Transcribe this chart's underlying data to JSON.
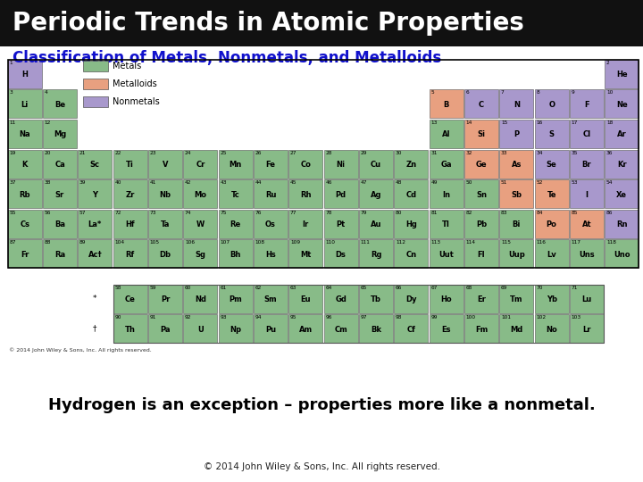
{
  "title": "Periodic Trends in Atomic Properties",
  "subtitle": "Classification of Metals, Nonmetals, and Metalloids",
  "bottom_text1": "Hydrogen is an exception – properties more like a nonmetal.",
  "bottom_text2": "© 2014 John Wiley & Sons, Inc. All rights reserved.",
  "copyright_in_table": "© 2014 John Wiley & Sons, Inc. All rights reserved.",
  "title_bg": "#111111",
  "title_color": "#ffffff",
  "subtitle_color": "#1111cc",
  "metals_color": "#88bb88",
  "metalloids_color": "#e8a080",
  "nonmetals_color": "#a898cc",
  "border_color": "#444444",
  "elements": [
    {
      "num": 1,
      "sym": "H",
      "row": 1,
      "col": 1,
      "type": "nonmetal"
    },
    {
      "num": 2,
      "sym": "He",
      "row": 1,
      "col": 18,
      "type": "nonmetal"
    },
    {
      "num": 3,
      "sym": "Li",
      "row": 2,
      "col": 1,
      "type": "metal"
    },
    {
      "num": 4,
      "sym": "Be",
      "row": 2,
      "col": 2,
      "type": "metal"
    },
    {
      "num": 5,
      "sym": "B",
      "row": 2,
      "col": 13,
      "type": "metalloid"
    },
    {
      "num": 6,
      "sym": "C",
      "row": 2,
      "col": 14,
      "type": "nonmetal"
    },
    {
      "num": 7,
      "sym": "N",
      "row": 2,
      "col": 15,
      "type": "nonmetal"
    },
    {
      "num": 8,
      "sym": "O",
      "row": 2,
      "col": 16,
      "type": "nonmetal"
    },
    {
      "num": 9,
      "sym": "F",
      "row": 2,
      "col": 17,
      "type": "nonmetal"
    },
    {
      "num": 10,
      "sym": "Ne",
      "row": 2,
      "col": 18,
      "type": "nonmetal"
    },
    {
      "num": 11,
      "sym": "Na",
      "row": 3,
      "col": 1,
      "type": "metal"
    },
    {
      "num": 12,
      "sym": "Mg",
      "row": 3,
      "col": 2,
      "type": "metal"
    },
    {
      "num": 13,
      "sym": "Al",
      "row": 3,
      "col": 13,
      "type": "metal"
    },
    {
      "num": 14,
      "sym": "Si",
      "row": 3,
      "col": 14,
      "type": "metalloid"
    },
    {
      "num": 15,
      "sym": "P",
      "row": 3,
      "col": 15,
      "type": "nonmetal"
    },
    {
      "num": 16,
      "sym": "S",
      "row": 3,
      "col": 16,
      "type": "nonmetal"
    },
    {
      "num": 17,
      "sym": "Cl",
      "row": 3,
      "col": 17,
      "type": "nonmetal"
    },
    {
      "num": 18,
      "sym": "Ar",
      "row": 3,
      "col": 18,
      "type": "nonmetal"
    },
    {
      "num": 19,
      "sym": "K",
      "row": 4,
      "col": 1,
      "type": "metal"
    },
    {
      "num": 20,
      "sym": "Ca",
      "row": 4,
      "col": 2,
      "type": "metal"
    },
    {
      "num": 21,
      "sym": "Sc",
      "row": 4,
      "col": 3,
      "type": "metal"
    },
    {
      "num": 22,
      "sym": "Ti",
      "row": 4,
      "col": 4,
      "type": "metal"
    },
    {
      "num": 23,
      "sym": "V",
      "row": 4,
      "col": 5,
      "type": "metal"
    },
    {
      "num": 24,
      "sym": "Cr",
      "row": 4,
      "col": 6,
      "type": "metal"
    },
    {
      "num": 25,
      "sym": "Mn",
      "row": 4,
      "col": 7,
      "type": "metal"
    },
    {
      "num": 26,
      "sym": "Fe",
      "row": 4,
      "col": 8,
      "type": "metal"
    },
    {
      "num": 27,
      "sym": "Co",
      "row": 4,
      "col": 9,
      "type": "metal"
    },
    {
      "num": 28,
      "sym": "Ni",
      "row": 4,
      "col": 10,
      "type": "metal"
    },
    {
      "num": 29,
      "sym": "Cu",
      "row": 4,
      "col": 11,
      "type": "metal"
    },
    {
      "num": 30,
      "sym": "Zn",
      "row": 4,
      "col": 12,
      "type": "metal"
    },
    {
      "num": 31,
      "sym": "Ga",
      "row": 4,
      "col": 13,
      "type": "metal"
    },
    {
      "num": 32,
      "sym": "Ge",
      "row": 4,
      "col": 14,
      "type": "metalloid"
    },
    {
      "num": 33,
      "sym": "As",
      "row": 4,
      "col": 15,
      "type": "metalloid"
    },
    {
      "num": 34,
      "sym": "Se",
      "row": 4,
      "col": 16,
      "type": "nonmetal"
    },
    {
      "num": 35,
      "sym": "Br",
      "row": 4,
      "col": 17,
      "type": "nonmetal"
    },
    {
      "num": 36,
      "sym": "Kr",
      "row": 4,
      "col": 18,
      "type": "nonmetal"
    },
    {
      "num": 37,
      "sym": "Rb",
      "row": 5,
      "col": 1,
      "type": "metal"
    },
    {
      "num": 38,
      "sym": "Sr",
      "row": 5,
      "col": 2,
      "type": "metal"
    },
    {
      "num": 39,
      "sym": "Y",
      "row": 5,
      "col": 3,
      "type": "metal"
    },
    {
      "num": 40,
      "sym": "Zr",
      "row": 5,
      "col": 4,
      "type": "metal"
    },
    {
      "num": 41,
      "sym": "Nb",
      "row": 5,
      "col": 5,
      "type": "metal"
    },
    {
      "num": 42,
      "sym": "Mo",
      "row": 5,
      "col": 6,
      "type": "metal"
    },
    {
      "num": 43,
      "sym": "Tc",
      "row": 5,
      "col": 7,
      "type": "metal"
    },
    {
      "num": 44,
      "sym": "Ru",
      "row": 5,
      "col": 8,
      "type": "metal"
    },
    {
      "num": 45,
      "sym": "Rh",
      "row": 5,
      "col": 9,
      "type": "metal"
    },
    {
      "num": 46,
      "sym": "Pd",
      "row": 5,
      "col": 10,
      "type": "metal"
    },
    {
      "num": 47,
      "sym": "Ag",
      "row": 5,
      "col": 11,
      "type": "metal"
    },
    {
      "num": 48,
      "sym": "Cd",
      "row": 5,
      "col": 12,
      "type": "metal"
    },
    {
      "num": 49,
      "sym": "In",
      "row": 5,
      "col": 13,
      "type": "metal"
    },
    {
      "num": 50,
      "sym": "Sn",
      "row": 5,
      "col": 14,
      "type": "metal"
    },
    {
      "num": 51,
      "sym": "Sb",
      "row": 5,
      "col": 15,
      "type": "metalloid"
    },
    {
      "num": 52,
      "sym": "Te",
      "row": 5,
      "col": 16,
      "type": "metalloid"
    },
    {
      "num": 53,
      "sym": "I",
      "row": 5,
      "col": 17,
      "type": "nonmetal"
    },
    {
      "num": 54,
      "sym": "Xe",
      "row": 5,
      "col": 18,
      "type": "nonmetal"
    },
    {
      "num": 55,
      "sym": "Cs",
      "row": 6,
      "col": 1,
      "type": "metal"
    },
    {
      "num": 56,
      "sym": "Ba",
      "row": 6,
      "col": 2,
      "type": "metal"
    },
    {
      "num": 57,
      "sym": "La*",
      "row": 6,
      "col": 3,
      "type": "metal"
    },
    {
      "num": 72,
      "sym": "Hf",
      "row": 6,
      "col": 4,
      "type": "metal"
    },
    {
      "num": 73,
      "sym": "Ta",
      "row": 6,
      "col": 5,
      "type": "metal"
    },
    {
      "num": 74,
      "sym": "W",
      "row": 6,
      "col": 6,
      "type": "metal"
    },
    {
      "num": 75,
      "sym": "Re",
      "row": 6,
      "col": 7,
      "type": "metal"
    },
    {
      "num": 76,
      "sym": "Os",
      "row": 6,
      "col": 8,
      "type": "metal"
    },
    {
      "num": 77,
      "sym": "Ir",
      "row": 6,
      "col": 9,
      "type": "metal"
    },
    {
      "num": 78,
      "sym": "Pt",
      "row": 6,
      "col": 10,
      "type": "metal"
    },
    {
      "num": 79,
      "sym": "Au",
      "row": 6,
      "col": 11,
      "type": "metal"
    },
    {
      "num": 80,
      "sym": "Hg",
      "row": 6,
      "col": 12,
      "type": "metal"
    },
    {
      "num": 81,
      "sym": "Tl",
      "row": 6,
      "col": 13,
      "type": "metal"
    },
    {
      "num": 82,
      "sym": "Pb",
      "row": 6,
      "col": 14,
      "type": "metal"
    },
    {
      "num": 83,
      "sym": "Bi",
      "row": 6,
      "col": 15,
      "type": "metal"
    },
    {
      "num": 84,
      "sym": "Po",
      "row": 6,
      "col": 16,
      "type": "metalloid"
    },
    {
      "num": 85,
      "sym": "At",
      "row": 6,
      "col": 17,
      "type": "metalloid"
    },
    {
      "num": 86,
      "sym": "Rn",
      "row": 6,
      "col": 18,
      "type": "nonmetal"
    },
    {
      "num": 87,
      "sym": "Fr",
      "row": 7,
      "col": 1,
      "type": "metal"
    },
    {
      "num": 88,
      "sym": "Ra",
      "row": 7,
      "col": 2,
      "type": "metal"
    },
    {
      "num": 89,
      "sym": "Ac†",
      "row": 7,
      "col": 3,
      "type": "metal"
    },
    {
      "num": 104,
      "sym": "Rf",
      "row": 7,
      "col": 4,
      "type": "metal"
    },
    {
      "num": 105,
      "sym": "Db",
      "row": 7,
      "col": 5,
      "type": "metal"
    },
    {
      "num": 106,
      "sym": "Sg",
      "row": 7,
      "col": 6,
      "type": "metal"
    },
    {
      "num": 107,
      "sym": "Bh",
      "row": 7,
      "col": 7,
      "type": "metal"
    },
    {
      "num": 108,
      "sym": "Hs",
      "row": 7,
      "col": 8,
      "type": "metal"
    },
    {
      "num": 109,
      "sym": "Mt",
      "row": 7,
      "col": 9,
      "type": "metal"
    },
    {
      "num": 110,
      "sym": "Ds",
      "row": 7,
      "col": 10,
      "type": "metal"
    },
    {
      "num": 111,
      "sym": "Rg",
      "row": 7,
      "col": 11,
      "type": "metal"
    },
    {
      "num": 112,
      "sym": "Cn",
      "row": 7,
      "col": 12,
      "type": "metal"
    },
    {
      "num": 113,
      "sym": "Uut",
      "row": 7,
      "col": 13,
      "type": "metal"
    },
    {
      "num": 114,
      "sym": "Fl",
      "row": 7,
      "col": 14,
      "type": "metal"
    },
    {
      "num": 115,
      "sym": "Uup",
      "row": 7,
      "col": 15,
      "type": "metal"
    },
    {
      "num": 116,
      "sym": "Lv",
      "row": 7,
      "col": 16,
      "type": "metal"
    },
    {
      "num": 117,
      "sym": "Uns",
      "row": 7,
      "col": 17,
      "type": "metal"
    },
    {
      "num": 118,
      "sym": "Uno",
      "row": 7,
      "col": 18,
      "type": "metal"
    },
    {
      "num": 58,
      "sym": "Ce",
      "row": 9,
      "col": 4,
      "type": "metal"
    },
    {
      "num": 59,
      "sym": "Pr",
      "row": 9,
      "col": 5,
      "type": "metal"
    },
    {
      "num": 60,
      "sym": "Nd",
      "row": 9,
      "col": 6,
      "type": "metal"
    },
    {
      "num": 61,
      "sym": "Pm",
      "row": 9,
      "col": 7,
      "type": "metal"
    },
    {
      "num": 62,
      "sym": "Sm",
      "row": 9,
      "col": 8,
      "type": "metal"
    },
    {
      "num": 63,
      "sym": "Eu",
      "row": 9,
      "col": 9,
      "type": "metal"
    },
    {
      "num": 64,
      "sym": "Gd",
      "row": 9,
      "col": 10,
      "type": "metal"
    },
    {
      "num": 65,
      "sym": "Tb",
      "row": 9,
      "col": 11,
      "type": "metal"
    },
    {
      "num": 66,
      "sym": "Dy",
      "row": 9,
      "col": 12,
      "type": "metal"
    },
    {
      "num": 67,
      "sym": "Ho",
      "row": 9,
      "col": 13,
      "type": "metal"
    },
    {
      "num": 68,
      "sym": "Er",
      "row": 9,
      "col": 14,
      "type": "metal"
    },
    {
      "num": 69,
      "sym": "Tm",
      "row": 9,
      "col": 15,
      "type": "metal"
    },
    {
      "num": 70,
      "sym": "Yb",
      "row": 9,
      "col": 16,
      "type": "metal"
    },
    {
      "num": 71,
      "sym": "Lu",
      "row": 9,
      "col": 17,
      "type": "metal"
    },
    {
      "num": 90,
      "sym": "Th",
      "row": 10,
      "col": 4,
      "type": "metal"
    },
    {
      "num": 91,
      "sym": "Pa",
      "row": 10,
      "col": 5,
      "type": "metal"
    },
    {
      "num": 92,
      "sym": "U",
      "row": 10,
      "col": 6,
      "type": "metal"
    },
    {
      "num": 93,
      "sym": "Np",
      "row": 10,
      "col": 7,
      "type": "metal"
    },
    {
      "num": 94,
      "sym": "Pu",
      "row": 10,
      "col": 8,
      "type": "metal"
    },
    {
      "num": 95,
      "sym": "Am",
      "row": 10,
      "col": 9,
      "type": "metal"
    },
    {
      "num": 96,
      "sym": "Cm",
      "row": 10,
      "col": 10,
      "type": "metal"
    },
    {
      "num": 97,
      "sym": "Bk",
      "row": 10,
      "col": 11,
      "type": "metal"
    },
    {
      "num": 98,
      "sym": "Cf",
      "row": 10,
      "col": 12,
      "type": "metal"
    },
    {
      "num": 99,
      "sym": "Es",
      "row": 10,
      "col": 13,
      "type": "metal"
    },
    {
      "num": 100,
      "sym": "Fm",
      "row": 10,
      "col": 14,
      "type": "metal"
    },
    {
      "num": 101,
      "sym": "Md",
      "row": 10,
      "col": 15,
      "type": "metal"
    },
    {
      "num": 102,
      "sym": "No",
      "row": 10,
      "col": 16,
      "type": "metal"
    },
    {
      "num": 103,
      "sym": "Lr",
      "row": 10,
      "col": 17,
      "type": "metal"
    }
  ]
}
